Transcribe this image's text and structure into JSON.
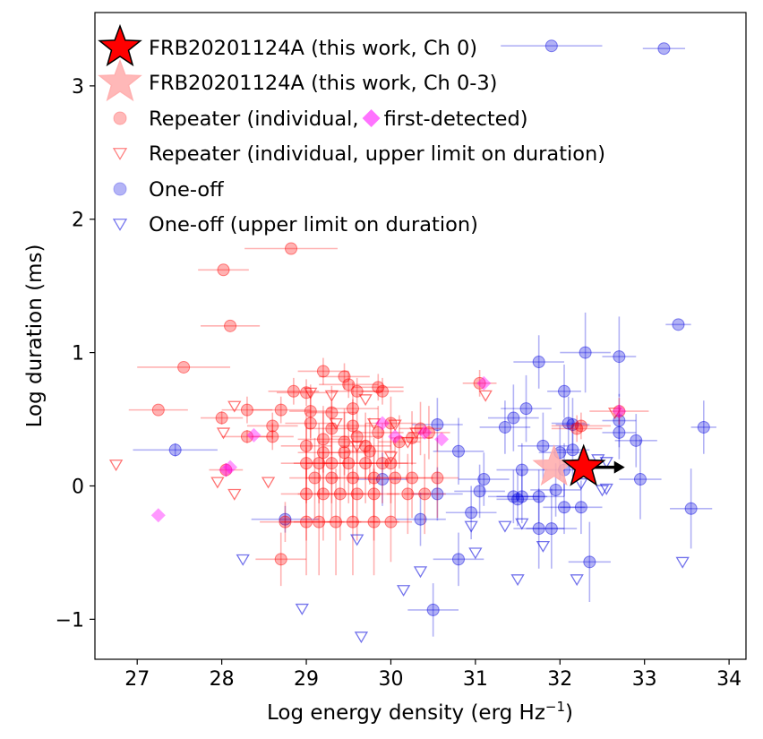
{
  "chart_data": {
    "type": "scatter",
    "xlabel": "Log energy density (erg Hz",
    "xlabel_sup": "−1",
    "xlabel_end": ")",
    "ylabel": "Log duration (ms)",
    "xlim": [
      26.5,
      34.2
    ],
    "ylim": [
      -1.3,
      3.55
    ],
    "x_ticks": [
      27,
      28,
      29,
      30,
      31,
      32,
      33,
      34
    ],
    "x_tick_labels": [
      "27",
      "28",
      "29",
      "30",
      "31",
      "32",
      "33",
      "34"
    ],
    "y_ticks": [
      -1,
      0,
      1,
      2,
      3
    ],
    "y_tick_labels": [
      "−1",
      "0",
      "1",
      "2",
      "3"
    ],
    "legend_position": "upper-left",
    "legend": [
      {
        "label": "FRB20201124A (this work, Ch 0)",
        "marker": "star",
        "color": "#ff0000"
      },
      {
        "label": "FRB20201124A (this work, Ch 0-3)",
        "marker": "star",
        "color": "#ffb0b0"
      },
      {
        "label": "Repeater (individual, ",
        "label_extra": "first-detected)",
        "marker": "circle",
        "color": "#ff8080"
      },
      {
        "label": "Repeater (individual, upper limit on duration)",
        "marker": "triangle-down",
        "color": "#ff8080"
      },
      {
        "label": "One-off",
        "marker": "circle",
        "color": "#7777ee"
      },
      {
        "label": "One-off (upper limit on duration)",
        "marker": "triangle-down",
        "color": "#7777ee"
      }
    ],
    "colors": {
      "repeater": "#ff0000",
      "first_detected": "#ff00ff",
      "one_off": "#0000dd",
      "star_ch0": "#ff0000",
      "star_ch03": "#ffaaaa"
    },
    "series": [
      {
        "name": "FRB20201124A (this work, Ch 0)",
        "marker": "star",
        "points": [
          {
            "x": 32.28,
            "y": 0.14,
            "arrow_right": true
          }
        ]
      },
      {
        "name": "FRB20201124A (this work, Ch 0-3)",
        "marker": "star",
        "points": [
          {
            "x": 31.93,
            "y": 0.14
          }
        ]
      },
      {
        "name": "Repeater (individual, first-detected)",
        "marker": "circle",
        "points": [
          [
            28.82,
            1.78,
            0.55,
            0.0
          ],
          [
            28.02,
            1.62,
            0.3,
            0.0
          ],
          [
            28.1,
            1.2,
            0.35,
            0.0
          ],
          [
            27.55,
            0.89,
            0.55,
            0.0
          ],
          [
            27.25,
            0.57,
            0.35,
            0.0
          ],
          [
            28.0,
            0.51,
            0.25,
            0.05
          ],
          [
            28.3,
            0.37,
            0.3,
            0.05
          ],
          [
            28.05,
            0.12,
            0.2,
            0.05
          ],
          [
            28.3,
            0.57,
            0.3,
            0.1
          ],
          [
            28.7,
            0.57,
            0.35,
            0.1
          ],
          [
            28.6,
            0.45,
            0.3,
            0.1
          ],
          [
            28.6,
            0.37,
            0.25,
            0.1
          ],
          [
            28.75,
            -0.27,
            0.3,
            0.15
          ],
          [
            28.7,
            -0.55,
            0.3,
            0.2
          ],
          [
            28.85,
            0.71,
            0.3,
            0.1
          ],
          [
            29.0,
            0.7,
            0.35,
            0.1
          ],
          [
            29.2,
            0.86,
            0.3,
            0.1
          ],
          [
            29.45,
            0.82,
            0.3,
            0.1
          ],
          [
            29.5,
            0.76,
            0.35,
            0.1
          ],
          [
            29.6,
            0.71,
            0.3,
            0.1
          ],
          [
            29.85,
            0.74,
            0.3,
            0.1
          ],
          [
            29.9,
            0.71,
            0.25,
            0.1
          ],
          [
            29.05,
            0.56,
            0.25,
            0.2
          ],
          [
            29.3,
            0.55,
            0.3,
            0.2
          ],
          [
            29.55,
            0.58,
            0.3,
            0.2
          ],
          [
            29.05,
            0.47,
            0.3,
            0.2
          ],
          [
            29.3,
            0.43,
            0.3,
            0.2
          ],
          [
            29.55,
            0.45,
            0.3,
            0.2
          ],
          [
            29.6,
            0.37,
            0.3,
            0.2
          ],
          [
            29.85,
            0.4,
            0.3,
            0.2
          ],
          [
            30.0,
            0.47,
            0.3,
            0.2
          ],
          [
            30.1,
            0.33,
            0.25,
            0.2
          ],
          [
            29.0,
            0.3,
            0.3,
            0.25
          ],
          [
            29.2,
            0.35,
            0.3,
            0.25
          ],
          [
            29.45,
            0.33,
            0.3,
            0.25
          ],
          [
            29.7,
            0.3,
            0.3,
            0.25
          ],
          [
            29.0,
            0.17,
            0.3,
            0.3
          ],
          [
            29.2,
            0.25,
            0.3,
            0.3
          ],
          [
            29.3,
            0.17,
            0.3,
            0.3
          ],
          [
            29.5,
            0.17,
            0.3,
            0.3
          ],
          [
            29.7,
            0.17,
            0.3,
            0.3
          ],
          [
            29.9,
            0.17,
            0.3,
            0.3
          ],
          [
            29.1,
            0.06,
            0.3,
            0.3
          ],
          [
            29.3,
            0.06,
            0.3,
            0.3
          ],
          [
            29.55,
            0.06,
            0.3,
            0.3
          ],
          [
            29.8,
            0.06,
            0.3,
            0.3
          ],
          [
            30.0,
            0.17,
            0.3,
            0.3
          ],
          [
            29.0,
            -0.06,
            0.3,
            0.35
          ],
          [
            29.2,
            -0.06,
            0.3,
            0.35
          ],
          [
            29.4,
            -0.06,
            0.3,
            0.35
          ],
          [
            29.6,
            -0.06,
            0.3,
            0.35
          ],
          [
            29.8,
            -0.06,
            0.3,
            0.35
          ],
          [
            30.05,
            0.06,
            0.25,
            0.3
          ],
          [
            30.2,
            -0.06,
            0.25,
            0.3
          ],
          [
            30.25,
            0.06,
            0.25,
            0.3
          ],
          [
            30.4,
            -0.06,
            0.25,
            0.3
          ],
          [
            30.55,
            0.06,
            0.25,
            0.3
          ],
          [
            29.0,
            -0.27,
            0.3,
            0.4
          ],
          [
            29.15,
            -0.27,
            0.3,
            0.4
          ],
          [
            29.35,
            -0.27,
            0.3,
            0.4
          ],
          [
            29.55,
            -0.27,
            0.3,
            0.4
          ],
          [
            29.8,
            -0.27,
            0.3,
            0.4
          ],
          [
            30.0,
            -0.27,
            0.25,
            0.3
          ],
          [
            29.15,
            0.17,
            0.3,
            0.3
          ],
          [
            29.45,
            0.25,
            0.3,
            0.3
          ],
          [
            29.75,
            0.26,
            0.3,
            0.25
          ],
          [
            30.25,
            0.36,
            0.25,
            0.2
          ],
          [
            30.35,
            0.43,
            0.25,
            0.2
          ],
          [
            30.45,
            0.4,
            0.25,
            0.2
          ],
          [
            32.25,
            0.45,
            0.35,
            0.1
          ],
          [
            32.7,
            0.56,
            0.35,
            0.1
          ],
          [
            31.05,
            0.77,
            0.2,
            0.1
          ],
          [
            32.2,
            0.43,
            0.3,
            0.1
          ]
        ]
      },
      {
        "name": "Repeater (individual, first-detected)",
        "marker": "diamond",
        "points": [
          [
            27.25,
            -0.22
          ],
          [
            28.1,
            0.14
          ],
          [
            28.05,
            0.12
          ],
          [
            28.38,
            0.38
          ],
          [
            29.9,
            0.47
          ],
          [
            30.05,
            0.37
          ],
          [
            30.4,
            0.4
          ],
          [
            30.6,
            0.35
          ],
          [
            31.1,
            0.77
          ],
          [
            32.7,
            0.56
          ]
        ]
      },
      {
        "name": "Repeater (individual, upper limit on duration)",
        "marker": "triangle-down",
        "points": [
          [
            26.75,
            0.16
          ],
          [
            28.15,
            0.6
          ],
          [
            28.02,
            0.4
          ],
          [
            27.95,
            0.03
          ],
          [
            28.15,
            -0.06
          ],
          [
            28.55,
            0.03
          ],
          [
            29.05,
            0.7
          ],
          [
            29.3,
            0.68
          ],
          [
            29.35,
            0.47
          ],
          [
            29.6,
            0.3
          ],
          [
            29.8,
            0.47
          ],
          [
            30.05,
            0.46
          ],
          [
            30.2,
            0.33
          ],
          [
            30.3,
            0.4
          ],
          [
            29.7,
            0.65
          ],
          [
            30.0,
            0.22
          ],
          [
            31.12,
            0.68
          ],
          [
            32.65,
            0.55
          ]
        ]
      },
      {
        "name": "One-off",
        "marker": "circle",
        "points": [
          [
            31.9,
            3.3,
            0.6,
            0.0
          ],
          [
            33.23,
            3.28,
            0.25,
            0.0
          ],
          [
            33.4,
            1.21,
            0.15,
            0.0
          ],
          [
            32.3,
            1.0,
            0.3,
            0.3
          ],
          [
            32.7,
            0.97,
            0.2,
            0.3
          ],
          [
            31.75,
            0.93,
            0.3,
            0.2
          ],
          [
            32.05,
            0.71,
            0.2,
            0.2
          ],
          [
            32.1,
            0.47,
            0.2,
            0.2
          ],
          [
            32.15,
            0.46,
            0.2,
            0.2
          ],
          [
            32.7,
            0.49,
            0.2,
            0.2
          ],
          [
            32.7,
            0.4,
            0.2,
            0.2
          ],
          [
            32.9,
            0.34,
            0.25,
            0.2
          ],
          [
            33.7,
            0.44,
            0.15,
            0.2
          ],
          [
            31.6,
            0.58,
            0.3,
            0.25
          ],
          [
            31.45,
            0.51,
            0.3,
            0.25
          ],
          [
            31.35,
            0.44,
            0.3,
            0.2
          ],
          [
            31.8,
            0.3,
            0.3,
            0.25
          ],
          [
            31.55,
            0.12,
            0.3,
            0.2
          ],
          [
            32.0,
            0.25,
            0.25,
            0.2
          ],
          [
            32.15,
            0.27,
            0.2,
            0.2
          ],
          [
            32.05,
            0.12,
            0.25,
            0.2
          ],
          [
            31.1,
            0.05,
            0.3,
            0.2
          ],
          [
            31.05,
            -0.04,
            0.3,
            0.2
          ],
          [
            31.45,
            -0.08,
            0.3,
            0.2
          ],
          [
            31.55,
            -0.08,
            0.3,
            0.2
          ],
          [
            31.75,
            -0.08,
            0.3,
            0.2
          ],
          [
            31.95,
            -0.03,
            0.3,
            0.2
          ],
          [
            32.05,
            -0.16,
            0.25,
            0.2
          ],
          [
            32.25,
            -0.16,
            0.25,
            0.2
          ],
          [
            32.95,
            0.05,
            0.25,
            0.3
          ],
          [
            33.55,
            -0.17,
            0.25,
            0.3
          ],
          [
            31.75,
            -0.32,
            0.3,
            0.3
          ],
          [
            31.9,
            -0.32,
            0.3,
            0.3
          ],
          [
            32.35,
            -0.57,
            0.25,
            0.3
          ],
          [
            30.8,
            0.26,
            0.3,
            0.25
          ],
          [
            30.55,
            0.46,
            0.3,
            0.2
          ],
          [
            30.35,
            -0.25,
            0.3,
            0.2
          ],
          [
            30.95,
            -0.2,
            0.3,
            0.2
          ],
          [
            30.55,
            -0.06,
            0.3,
            0.2
          ],
          [
            30.8,
            -0.55,
            0.3,
            0.2
          ],
          [
            30.5,
            -0.93,
            0.3,
            0.2
          ],
          [
            28.75,
            -0.25,
            0.4,
            0.1
          ],
          [
            27.45,
            0.27,
            0.5,
            0.05
          ],
          [
            29.9,
            0.05,
            0.3,
            0.2
          ],
          [
            31.5,
            -0.1,
            0.25,
            0.2
          ]
        ]
      },
      {
        "name": "One-off (upper limit on duration)",
        "marker": "triangle-down",
        "points": [
          [
            28.25,
            -0.55
          ],
          [
            28.95,
            -0.92
          ],
          [
            29.6,
            -0.4
          ],
          [
            29.65,
            -1.13
          ],
          [
            30.15,
            -0.78
          ],
          [
            30.35,
            -0.64
          ],
          [
            30.95,
            -0.3
          ],
          [
            31.0,
            -0.5
          ],
          [
            31.5,
            -0.7
          ],
          [
            31.8,
            -0.45
          ],
          [
            31.55,
            -0.28
          ],
          [
            32.2,
            -0.7
          ],
          [
            32.25,
            0.02
          ],
          [
            32.5,
            -0.03
          ],
          [
            32.45,
            0.2
          ],
          [
            32.55,
            0.18
          ],
          [
            33.45,
            -0.57
          ],
          [
            32.55,
            -0.02
          ],
          [
            31.35,
            -0.3
          ]
        ]
      }
    ]
  }
}
